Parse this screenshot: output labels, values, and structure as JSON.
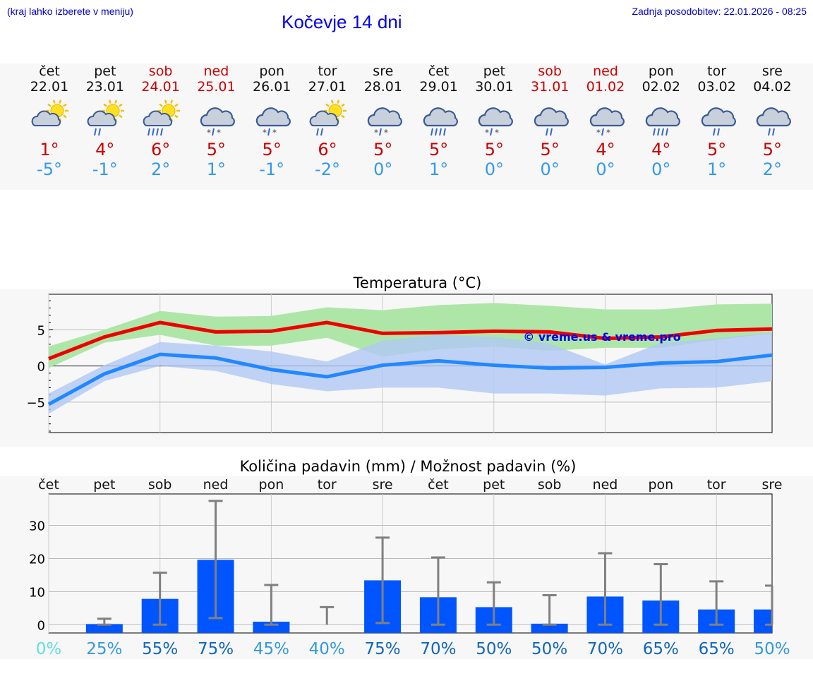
{
  "header": {
    "left_note": "(kraj lahko izberete v meniju)",
    "title": "Kočevje 14 dni",
    "updated": "Zadnja posodobitev: 22.01.2026 - 08:25"
  },
  "days": [
    {
      "name": "čet",
      "date": "22.01",
      "weekend": false,
      "icon": "partly-cloudy-sun-icon",
      "tmax": "1°",
      "tmin": "-5°"
    },
    {
      "name": "pet",
      "date": "23.01",
      "weekend": false,
      "icon": "sun-cloud-rain-icon",
      "tmax": "4°",
      "tmin": "-1°"
    },
    {
      "name": "sob",
      "date": "24.01",
      "weekend": true,
      "icon": "sun-cloud-heavy-rain-icon",
      "tmax": "6°",
      "tmin": "2°"
    },
    {
      "name": "ned",
      "date": "25.01",
      "weekend": true,
      "icon": "cloud-sleet-icon",
      "tmax": "5°",
      "tmin": "1°"
    },
    {
      "name": "pon",
      "date": "26.01",
      "weekend": false,
      "icon": "cloud-sleet-icon",
      "tmax": "5°",
      "tmin": "-1°"
    },
    {
      "name": "tor",
      "date": "27.01",
      "weekend": false,
      "icon": "sun-cloud-rain-icon",
      "tmax": "6°",
      "tmin": "-2°"
    },
    {
      "name": "sre",
      "date": "28.01",
      "weekend": false,
      "icon": "cloud-sleet-icon",
      "tmax": "5°",
      "tmin": "0°"
    },
    {
      "name": "čet",
      "date": "29.01",
      "weekend": false,
      "icon": "cloud-heavy-rain-icon",
      "tmax": "5°",
      "tmin": "1°"
    },
    {
      "name": "pet",
      "date": "30.01",
      "weekend": false,
      "icon": "cloud-sleet-icon",
      "tmax": "5°",
      "tmin": "0°"
    },
    {
      "name": "sob",
      "date": "31.01",
      "weekend": true,
      "icon": "cloud-rain-icon",
      "tmax": "5°",
      "tmin": "0°"
    },
    {
      "name": "ned",
      "date": "01.02",
      "weekend": true,
      "icon": "cloud-sleet-icon",
      "tmax": "4°",
      "tmin": "0°"
    },
    {
      "name": "pon",
      "date": "02.02",
      "weekend": false,
      "icon": "cloud-heavy-rain-icon",
      "tmax": "4°",
      "tmin": "0°"
    },
    {
      "name": "tor",
      "date": "03.02",
      "weekend": false,
      "icon": "cloud-rain-icon",
      "tmax": "5°",
      "tmin": "1°"
    },
    {
      "name": "sre",
      "date": "04.02",
      "weekend": false,
      "icon": "cloud-rain-icon",
      "tmax": "5°",
      "tmin": "2°"
    }
  ],
  "colors": {
    "max_line": "#ee0000",
    "min_line": "#2288ff",
    "max_band": "#aee6a8",
    "min_band": "#b0c8f4",
    "precip_bar": "#0055ff",
    "error_bar": "#808080",
    "watermark": "#0000ee"
  },
  "chart_data": [
    {
      "type": "line",
      "title": "Temperatura (°C)",
      "x": [
        0,
        1,
        2,
        3,
        4,
        5,
        6,
        7,
        8,
        9,
        10,
        11,
        12,
        13
      ],
      "ylim": [
        -9.2,
        9.9
      ],
      "yticks": [
        -5,
        0,
        5
      ],
      "ytick_labels": [
        "−5",
        "0",
        "5"
      ],
      "watermark": "© vreme.us & vreme.pro",
      "series": [
        {
          "name": "max",
          "values": [
            1,
            4,
            6,
            4.7,
            4.8,
            6,
            4.5,
            4.6,
            4.8,
            4.7,
            3.8,
            4,
            4.9,
            5.1
          ],
          "band_low": [
            -0.3,
            3.2,
            4.3,
            2.8,
            2.8,
            3.9,
            1.3,
            2.3,
            2.7,
            2.1,
            2.5,
            2.5,
            3.6,
            4.5
          ],
          "band_high": [
            2.7,
            5,
            7.6,
            6.8,
            6.9,
            8.1,
            7.7,
            8.4,
            8.7,
            8.3,
            7.8,
            7.8,
            8.5,
            8.6
          ]
        },
        {
          "name": "min",
          "values": [
            -5.3,
            -1.1,
            1.6,
            1.1,
            -0.5,
            -1.5,
            0.1,
            0.7,
            0.1,
            -0.3,
            -0.2,
            0.4,
            0.6,
            1.5
          ],
          "band_low": [
            -6.6,
            -2.1,
            0,
            -0.7,
            -2.5,
            -3.5,
            -3,
            -3,
            -3.8,
            -3.8,
            -4.1,
            -3.1,
            -3,
            -2.1
          ],
          "band_high": [
            -3.8,
            0.1,
            3.3,
            2.8,
            2,
            0.6,
            3.5,
            4.3,
            4,
            3.1,
            0.2,
            3.2,
            3.8,
            4.6
          ]
        }
      ]
    },
    {
      "type": "bar",
      "title": "Količina padavin (mm) / Možnost padavin (%)",
      "categories": [
        "čet",
        "pet",
        "sob",
        "ned",
        "pon",
        "tor",
        "sre",
        "čet",
        "pet",
        "sob",
        "ned",
        "pon",
        "tor",
        "sre"
      ],
      "values": [
        0,
        0.2,
        7.8,
        19.6,
        0.9,
        0,
        13.4,
        8.3,
        5.3,
        0.3,
        8.5,
        7.3,
        4.6,
        4.6
      ],
      "err_low": [
        0,
        0,
        0,
        2,
        0,
        0,
        0.5,
        0,
        0,
        0,
        0,
        0,
        0,
        0
      ],
      "err_high": [
        0,
        1.8,
        15.7,
        37.4,
        12,
        5.3,
        26.3,
        20.3,
        12.8,
        8.9,
        21.6,
        18.3,
        13.1,
        11.8
      ],
      "ylim": [
        -2.5,
        39.5
      ],
      "yticks": [
        0,
        10,
        20,
        30
      ],
      "ytick_labels": [
        "0",
        "10",
        "20",
        "30"
      ],
      "probabilities": [
        {
          "label": "0%",
          "value": 0,
          "color": "#66dddd"
        },
        {
          "label": "25%",
          "value": 25,
          "color": "#3399dd"
        },
        {
          "label": "55%",
          "value": 55,
          "color": "#1166bb"
        },
        {
          "label": "75%",
          "value": 75,
          "color": "#1166bb"
        },
        {
          "label": "45%",
          "value": 45,
          "color": "#3399dd"
        },
        {
          "label": "40%",
          "value": 40,
          "color": "#3399dd"
        },
        {
          "label": "75%",
          "value": 75,
          "color": "#1166bb"
        },
        {
          "label": "70%",
          "value": 70,
          "color": "#1166bb"
        },
        {
          "label": "50%",
          "value": 50,
          "color": "#1166bb"
        },
        {
          "label": "50%",
          "value": 50,
          "color": "#1166bb"
        },
        {
          "label": "70%",
          "value": 70,
          "color": "#1166bb"
        },
        {
          "label": "65%",
          "value": 65,
          "color": "#1166bb"
        },
        {
          "label": "65%",
          "value": 65,
          "color": "#1166bb"
        },
        {
          "label": "50%",
          "value": 50,
          "color": "#3399dd"
        }
      ]
    }
  ]
}
